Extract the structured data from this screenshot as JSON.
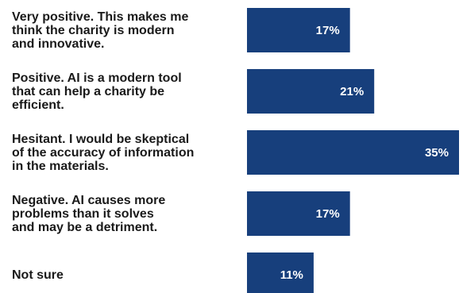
{
  "chart_data": {
    "type": "bar",
    "orientation": "horizontal",
    "categories": [
      [
        "Very positive. This makes me",
        "think the charity is modern",
        "and innovative."
      ],
      [
        "Positive. AI is a modern tool",
        "that can help a charity be",
        "efficient."
      ],
      [
        "Hesitant. I would be skeptical",
        "of the accuracy of information",
        "in the materials."
      ],
      [
        "Negative. AI causes more",
        "problems than it solves",
        "and may be a detriment."
      ],
      [
        "Not sure"
      ]
    ],
    "values": [
      17,
      21,
      35,
      17,
      11
    ],
    "value_labels": [
      "17%",
      "21%",
      "35%",
      "17%",
      "11%"
    ],
    "unit": "%",
    "title": "",
    "xlabel": "",
    "ylabel": "",
    "xlim": [
      0,
      35
    ],
    "grid": false,
    "legend": "none",
    "colors": {
      "bar": "#173f7c",
      "bar_label": "#ffffff",
      "category_label": "#1a1a1a"
    }
  }
}
